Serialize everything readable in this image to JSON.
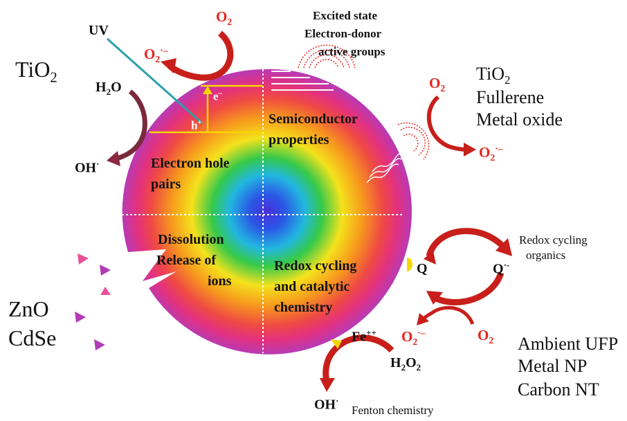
{
  "colors": {
    "red": "#e8231c",
    "uv_line": "#2aa0a8",
    "yellow": "#f7d600",
    "ring_outer": "#b23bb6"
  },
  "labels": {
    "tio2_left": "TiO",
    "tio2_left_sub": "2",
    "uv": "UV",
    "o2_top": "O",
    "o2_top_sub": "2",
    "o2rad_top": "O",
    "o2rad_top_sub": "2",
    "o2rad_top_sup": "·–",
    "h2o": "H",
    "h2o_sub": "2",
    "h2o_end": "O",
    "oh_left": "OH",
    "oh_left_sup": "·",
    "e_minus": "e",
    "e_minus_sup": "–",
    "h_plus": "h",
    "h_plus_sup": "+",
    "excited_1": "Excited state",
    "excited_2": "Electron-donor",
    "excited_3": "active groups",
    "right_1": "TiO",
    "right_1_sub": "2",
    "right_2": "Fullerene",
    "right_3": "Metal oxide",
    "o2_right": "O",
    "o2_right_sub": "2",
    "o2rad_right": "O",
    "o2rad_right_sub": "2",
    "o2rad_right_sup": "·–",
    "q1_semi_1": "Semiconductor",
    "q1_semi_2": "properties",
    "q2_eh_1": "Electron hole",
    "q2_eh_2": "pairs",
    "q3_diss_1": "Dissolution",
    "q3_diss_2": "Release of",
    "q3_diss_3": "ions",
    "q4_redox_1": "Redox cycling",
    "q4_redox_2": "and catalytic",
    "q4_redox_3": "chemistry",
    "redox_org_1": "Redox cycling",
    "redox_org_2": "organics",
    "q": "Q",
    "q_rad": "Q",
    "q_rad_sup": "·-",
    "o2rad_bottom": "O",
    "o2rad_bottom_sub": "2",
    "o2rad_bottom_sup": "·–",
    "o2_bottom": "O",
    "o2_bottom_sub": "2",
    "zno": "ZnO",
    "cdse": "CdSe",
    "fe": "Fe",
    "fe_sup": "++",
    "h2o2": "H",
    "h2o2_sub1": "2",
    "h2o2_mid": "O",
    "h2o2_sub2": "2",
    "oh_bottom": "OH",
    "oh_bottom_sup": "·",
    "fenton": "Fenton chemistry",
    "ambient_1": "Ambient UFP",
    "ambient_2": "Metal NP",
    "ambient_3": "Carbon NT"
  }
}
